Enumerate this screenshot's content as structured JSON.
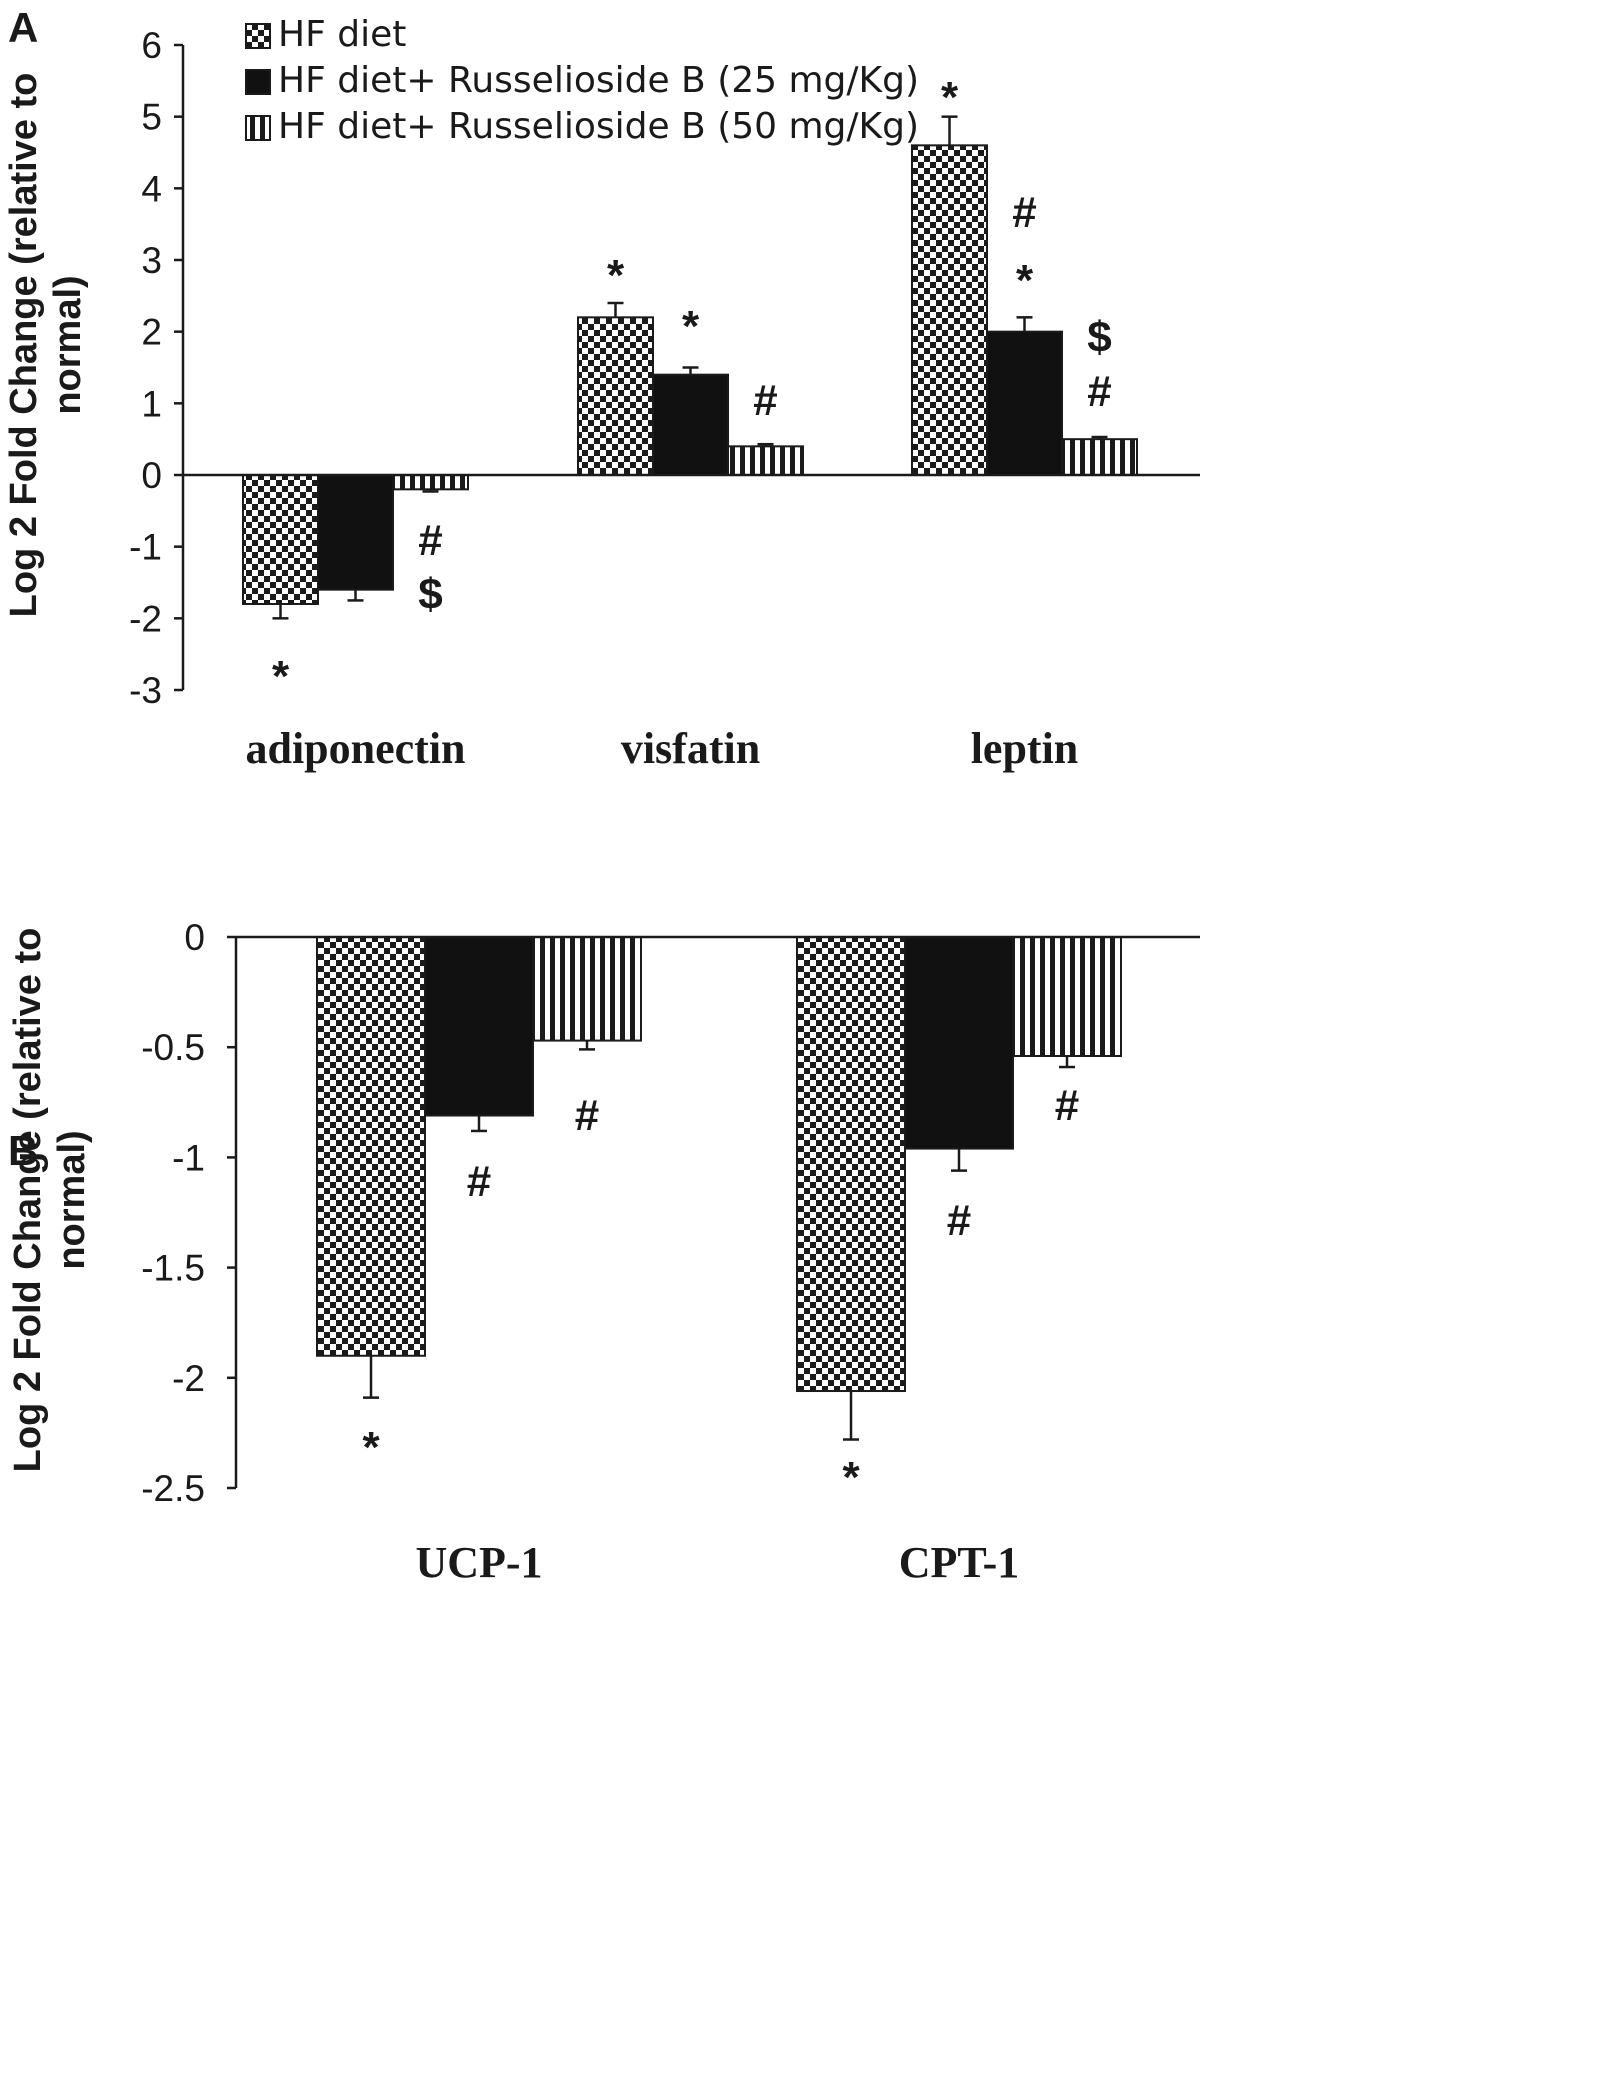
{
  "chart_data": [
    {
      "panel": "A",
      "type": "bar",
      "title": "",
      "ylabel": "Log 2 Fold Change (relative to normal)",
      "ylabel_lines": [
        "Log 2 Fold Change (relative to",
        "normal)"
      ],
      "xlabel": "",
      "ylim": [
        -3,
        6
      ],
      "yticks": [
        -3,
        -2,
        -1,
        0,
        1,
        2,
        3,
        4,
        5,
        6
      ],
      "ytick_labels": [
        "-3",
        "-2",
        "-1",
        "0",
        "1",
        "2",
        "3",
        "4",
        "5",
        "6"
      ],
      "categories": [
        "adiponectin",
        "visfatin",
        "leptin"
      ],
      "series": [
        {
          "name": "HF diet",
          "pattern": "checker",
          "values": [
            -1.8,
            2.2,
            4.6
          ],
          "errors": [
            0.2,
            0.2,
            0.4
          ]
        },
        {
          "name": "HF diet+ Russelioside B (25 mg/Kg)",
          "pattern": "solid",
          "values": [
            -1.6,
            1.4,
            2.0
          ],
          "errors": [
            0.15,
            0.1,
            0.2
          ]
        },
        {
          "name": "HF diet+ Russelioside B (50 mg/Kg)",
          "pattern": "vstripe",
          "values": [
            -0.2,
            0.4,
            0.5
          ],
          "errors": [
            0.03,
            0.03,
            0.03
          ]
        }
      ],
      "annotations": [
        {
          "category": 0,
          "series": 0,
          "labels": [
            "*"
          ]
        },
        {
          "category": 0,
          "series": 2,
          "labels": [
            "#",
            "$"
          ]
        },
        {
          "category": 1,
          "series": 0,
          "labels": [
            "*"
          ]
        },
        {
          "category": 1,
          "series": 1,
          "labels": [
            "*"
          ]
        },
        {
          "category": 1,
          "series": 2,
          "labels": [
            "#"
          ]
        },
        {
          "category": 2,
          "series": 0,
          "labels": [
            "*"
          ]
        },
        {
          "category": 2,
          "series": 1,
          "labels": [
            "#",
            "*"
          ]
        },
        {
          "category": 2,
          "series": 2,
          "labels": [
            "$",
            "#"
          ]
        }
      ],
      "legend": [
        "HF diet",
        "HF diet+ Russelioside B (25 mg/Kg)",
        "HF diet+ Russelioside B (50 mg/Kg)"
      ],
      "legend_position": "top-left"
    },
    {
      "panel": "B",
      "type": "bar",
      "title": "",
      "ylabel": "Log 2 Fold Change (relative to normal)",
      "ylabel_lines": [
        "Log 2 Fold Change (relative to",
        "normal)"
      ],
      "xlabel": "",
      "ylim": [
        -2.5,
        0
      ],
      "yticks": [
        -2.5,
        -2,
        -1.5,
        -1,
        -0.5,
        0
      ],
      "ytick_labels": [
        "-2.5",
        "-2",
        "-1.5",
        "-1",
        "-0.5",
        "0"
      ],
      "categories": [
        "UCP-1",
        "CPT-1"
      ],
      "series": [
        {
          "name": "HF diet",
          "pattern": "checker",
          "values": [
            -1.9,
            -2.06
          ],
          "errors": [
            0.19,
            0.22
          ]
        },
        {
          "name": "HF diet+ Russelioside B (25 mg/Kg)",
          "pattern": "solid",
          "values": [
            -0.81,
            -0.96
          ],
          "errors": [
            0.07,
            0.1
          ]
        },
        {
          "name": "HF diet+ Russelioside B (50 mg/Kg)",
          "pattern": "vstripe",
          "values": [
            -0.47,
            -0.54
          ],
          "errors": [
            0.04,
            0.05
          ]
        }
      ],
      "annotations": [
        {
          "category": 0,
          "series": 0,
          "labels": [
            "*"
          ]
        },
        {
          "category": 0,
          "series": 1,
          "labels": [
            "#"
          ]
        },
        {
          "category": 0,
          "series": 2,
          "labels": [
            "#"
          ]
        },
        {
          "category": 1,
          "series": 0,
          "labels": [
            "*"
          ]
        },
        {
          "category": 1,
          "series": 1,
          "labels": [
            "#"
          ]
        },
        {
          "category": 1,
          "series": 2,
          "labels": [
            "#"
          ]
        }
      ]
    }
  ]
}
